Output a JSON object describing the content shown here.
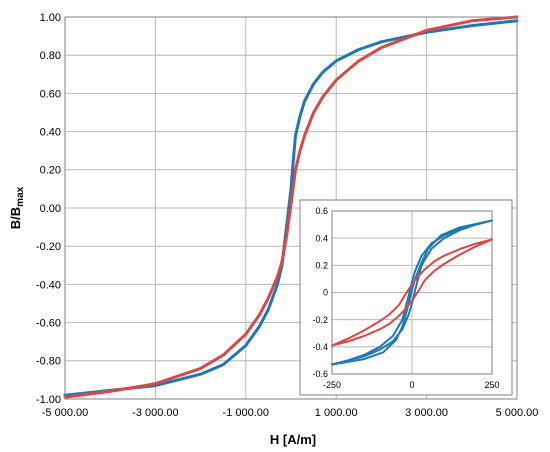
{
  "chart_data": [
    {
      "type": "line",
      "xlabel": "H [A/m]",
      "ylabel_main": "B/B",
      "ylabel_sub": "max",
      "xlim": [
        -5000,
        5000
      ],
      "ylim": [
        -1.0,
        1.0
      ],
      "grid": true,
      "x_ticks": [
        "-5 000.00",
        "-3 000.00",
        "-1 000.00",
        "1 000.00",
        "3 000.00",
        "5 000.00"
      ],
      "x_tick_values": [
        -5000,
        -3000,
        -1000,
        1000,
        3000,
        5000
      ],
      "y_ticks": [
        "1.00",
        "0.80",
        "0.60",
        "0.40",
        "0.20",
        "0.00",
        "-0.20",
        "-0.40",
        "-0.60",
        "-0.80",
        "-1.00"
      ],
      "y_tick_values": [
        1.0,
        0.8,
        0.6,
        0.4,
        0.2,
        0.0,
        -0.2,
        -0.4,
        -0.6,
        -0.8,
        -1.0
      ],
      "series": [
        {
          "color": "#1f77b4",
          "x": [
            -5000,
            -4000,
            -3000,
            -2000,
            -1500,
            -1000,
            -700,
            -500,
            -300,
            -200,
            -100,
            0,
            50,
            100,
            200,
            300,
            500,
            700,
            1000,
            1500,
            2000,
            3000,
            4000,
            5000
          ],
          "y": [
            -0.98,
            -0.955,
            -0.93,
            -0.87,
            -0.82,
            -0.72,
            -0.62,
            -0.53,
            -0.4,
            -0.3,
            -0.1,
            0.1,
            0.25,
            0.38,
            0.48,
            0.56,
            0.65,
            0.71,
            0.77,
            0.83,
            0.87,
            0.92,
            0.955,
            0.98
          ]
        },
        {
          "color": "#d94848",
          "x": [
            -5000,
            -4000,
            -3000,
            -2000,
            -1500,
            -1000,
            -700,
            -500,
            -300,
            -200,
            -100,
            0,
            100,
            200,
            300,
            500,
            700,
            1000,
            1500,
            2000,
            3000,
            4000,
            5000
          ],
          "y": [
            -0.99,
            -0.96,
            -0.92,
            -0.84,
            -0.77,
            -0.66,
            -0.56,
            -0.47,
            -0.36,
            -0.28,
            -0.15,
            0.02,
            0.2,
            0.3,
            0.38,
            0.5,
            0.58,
            0.67,
            0.77,
            0.84,
            0.93,
            0.98,
            1.0
          ]
        }
      ]
    },
    {
      "type": "line",
      "xlim": [
        -250,
        250
      ],
      "ylim": [
        -0.6,
        0.6
      ],
      "grid": true,
      "x_ticks": [
        "-250",
        "0",
        "250"
      ],
      "x_tick_values": [
        -250,
        0,
        250
      ],
      "y_ticks": [
        "0.6",
        "0.4",
        "0.2",
        "0",
        "-0.2",
        "-0.4",
        "-0.6"
      ],
      "y_tick_values": [
        0.6,
        0.4,
        0.2,
        0,
        -0.2,
        -0.4,
        -0.6
      ],
      "series": [
        {
          "color": "#1f77b4",
          "x": [
            -250,
            -200,
            -150,
            -100,
            -60,
            -30,
            -10,
            0,
            10,
            30,
            60,
            100,
            150,
            200,
            250,
            200,
            150,
            100,
            60,
            30,
            10,
            0,
            -10,
            -30,
            -60,
            -100,
            -150,
            -200,
            -250
          ],
          "y": [
            -0.53,
            -0.5,
            -0.47,
            -0.42,
            -0.36,
            -0.27,
            -0.16,
            -0.08,
            0.02,
            0.2,
            0.32,
            0.4,
            0.46,
            0.5,
            0.53,
            0.5,
            0.47,
            0.42,
            0.36,
            0.27,
            0.16,
            0.08,
            -0.02,
            -0.2,
            -0.32,
            -0.4,
            -0.46,
            -0.5,
            -0.53
          ]
        },
        {
          "color": "#1f77b4",
          "x": [
            -250,
            -150,
            -90,
            -50,
            -30,
            -10,
            0,
            10,
            30,
            50,
            90,
            150,
            250
          ],
          "y": [
            -0.53,
            -0.49,
            -0.44,
            -0.35,
            -0.25,
            -0.08,
            0.02,
            0.1,
            0.22,
            0.32,
            0.42,
            0.48,
            0.53
          ]
        },
        {
          "color": "#d94848",
          "x": [
            -250,
            -200,
            -150,
            -100,
            -70,
            -40,
            -20,
            0,
            20,
            40,
            70,
            100,
            150,
            200,
            250,
            200,
            150,
            100,
            70,
            40,
            20,
            0,
            -20,
            -40,
            -70,
            -100,
            -150,
            -200,
            -250
          ],
          "y": [
            -0.39,
            -0.36,
            -0.32,
            -0.27,
            -0.23,
            -0.17,
            -0.12,
            -0.06,
            0.01,
            0.09,
            0.16,
            0.21,
            0.28,
            0.34,
            0.39,
            0.36,
            0.32,
            0.27,
            0.23,
            0.17,
            0.12,
            0.06,
            -0.01,
            -0.09,
            -0.16,
            -0.21,
            -0.28,
            -0.34,
            -0.39
          ]
        }
      ]
    }
  ]
}
